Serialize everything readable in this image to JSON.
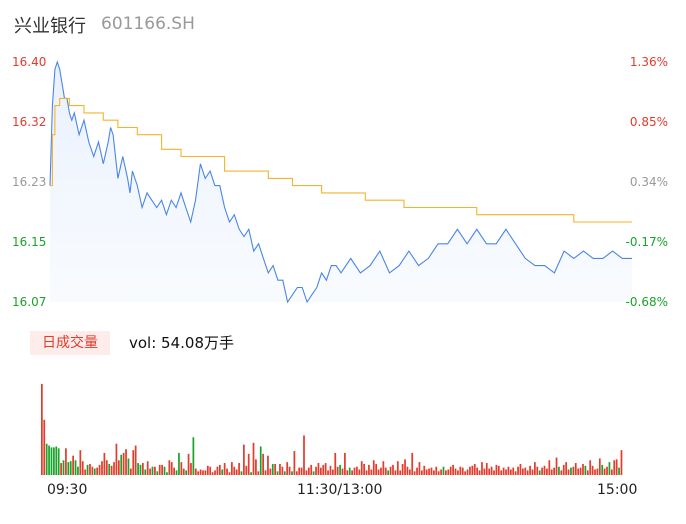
{
  "header": {
    "stock_name": "兴业银行",
    "stock_code": "601166.SH"
  },
  "colors": {
    "up": "#e13c2c",
    "down": "#1aa32a",
    "neutral": "#999999",
    "price_line": "#4a85e8",
    "avg_line": "#f5b32d"
  },
  "volume": {
    "period_badge": "日成交量",
    "label": "vol: 54.08万手"
  },
  "chart_data": {
    "type": "line",
    "ylim": [
      16.07,
      16.4
    ],
    "prev_close": 16.18,
    "y_ticks_left": [
      {
        "value": 16.4,
        "label": "16.40",
        "color": "up"
      },
      {
        "value": 16.32,
        "label": "16.32",
        "color": "up"
      },
      {
        "value": 16.23,
        "label": "16.23",
        "color": "neutral"
      },
      {
        "value": 16.15,
        "label": "16.15",
        "color": "down"
      },
      {
        "value": 16.07,
        "label": "16.07",
        "color": "down"
      }
    ],
    "y_ticks_right": [
      "1.36%",
      "0.85%",
      "0.34%",
      "-0.17%",
      "-0.68%"
    ],
    "x_ticks": [
      "09:30",
      "11:30/13:00",
      "15:00"
    ],
    "series": [
      {
        "x": [
          0,
          1,
          2,
          3,
          4,
          5,
          6,
          7,
          8,
          9,
          10,
          12,
          14,
          16,
          18,
          20,
          22,
          24,
          25,
          26,
          28,
          30,
          32,
          33,
          34,
          36,
          38,
          40,
          42,
          44,
          46,
          48,
          50,
          52,
          54,
          56,
          58,
          60,
          62,
          64,
          66,
          68,
          70,
          72,
          74,
          76,
          78,
          80,
          82,
          84,
          86,
          88,
          90,
          92,
          94,
          96,
          98,
          100,
          102,
          104,
          106,
          108,
          110,
          112,
          114,
          116,
          118,
          120,
          124,
          128,
          132,
          136,
          140,
          144,
          148,
          152,
          156,
          160,
          164,
          168,
          172,
          176,
          180,
          184,
          188,
          192,
          196,
          200,
          204,
          208,
          212,
          216,
          220,
          224,
          228,
          232,
          236,
          240
        ],
        "values": [
          16.23,
          16.34,
          16.39,
          16.4,
          16.39,
          16.37,
          16.35,
          16.35,
          16.33,
          16.32,
          16.33,
          16.3,
          16.32,
          16.29,
          16.27,
          16.29,
          16.26,
          16.29,
          16.31,
          16.3,
          16.24,
          16.27,
          16.24,
          16.22,
          16.25,
          16.23,
          16.2,
          16.22,
          16.21,
          16.2,
          16.21,
          16.19,
          16.21,
          16.2,
          16.22,
          16.2,
          16.18,
          16.21,
          16.26,
          16.24,
          16.25,
          16.23,
          16.23,
          16.2,
          16.18,
          16.19,
          16.17,
          16.16,
          16.17,
          16.14,
          16.15,
          16.13,
          16.11,
          16.12,
          16.1,
          16.1,
          16.07,
          16.08,
          16.09,
          16.09,
          16.07,
          16.08,
          16.09,
          16.11,
          16.1,
          16.12,
          16.12,
          16.11,
          16.13,
          16.11,
          16.12,
          16.14,
          16.11,
          16.12,
          16.14,
          16.12,
          16.13,
          16.15,
          16.15,
          16.17,
          16.15,
          16.17,
          16.15,
          16.15,
          16.17,
          16.15,
          16.13,
          16.12,
          16.12,
          16.11,
          16.14,
          16.13,
          16.14,
          16.13,
          16.13,
          16.14,
          16.13,
          16.13
        ]
      },
      {
        "x": [
          0,
          1,
          2,
          4,
          8,
          14,
          22,
          28,
          36,
          46,
          54,
          72,
          90,
          100,
          112,
          130,
          146,
          176,
          200,
          216,
          230,
          240
        ],
        "values": [
          16.23,
          16.3,
          16.34,
          16.35,
          16.34,
          16.33,
          16.32,
          16.31,
          16.3,
          16.28,
          16.27,
          16.25,
          16.24,
          16.23,
          16.22,
          16.21,
          16.2,
          16.19,
          16.19,
          16.18,
          16.18,
          16.18
        ]
      }
    ],
    "volume_values": [
      9.9,
      6.0,
      3.4,
      3.2,
      3.0,
      3.0,
      3.1,
      2.9,
      1.3,
      1.6,
      2.9,
      1.4,
      1.5,
      2.1,
      1.6,
      0.9,
      2.7,
      1.5,
      0.6,
      1.1,
      1.2,
      0.9,
      0.7,
      0.8,
      1.1,
      1.5,
      2.4,
      1.6,
      1.2,
      1.0,
      1.4,
      3.4,
      1.6,
      2.2,
      2.4,
      2.8,
      1.8,
      0.7,
      2.7,
      3.2,
      1.3,
      1.1,
      1.3,
      0.6,
      1.5,
      0.7,
      0.9,
      0.9,
      0.4,
      1.1,
      1.1,
      0.9,
      0.3,
      1.6,
      1.4,
      0.8,
      0.5,
      2.4,
      1.4,
      0.7,
      0.5,
      2.3,
      1.3,
      4.1,
      0.7,
      0.4,
      0.6,
      0.5,
      0.5,
      1.0,
      0.9,
      0.3,
      0.5,
      0.9,
      1.1,
      0.6,
      1.3,
      0.7,
      0.3,
      1.4,
      0.9,
      0.6,
      1.3,
      0.4,
      3.3,
      1.0,
      2.3,
      0.3,
      3.5,
      1.7,
      0.4,
      3.1,
      2.3,
      0.5,
      2.1,
      0.7,
      1.2,
      1.2,
      0.4,
      1.2,
      0.9,
      0.4,
      1.4,
      0.9,
      0.4,
      2.6,
      0.4,
      0.8,
      0.8,
      4.3,
      0.5,
      0.8,
      1.1,
      0.4,
      0.9,
      1.3,
      0.8,
      1.1,
      1.3,
      0.5,
      1.0,
      0.6,
      2.4,
      0.9,
      1.1,
      0.7,
      2.4,
      0.5,
      0.8,
      0.5,
      0.8,
      0.9,
      0.6,
      1.5,
      1.2,
      0.5,
      1.1,
      0.6,
      1.6,
      1.2,
      0.6,
      0.8,
      1.5,
      0.8,
      0.5,
      0.9,
      1.1,
      0.5,
      1.5,
      0.5,
      1.2,
      1.7,
      0.9,
      0.6,
      2.4,
      0.4,
      0.8,
      1.4,
      0.5,
      1.0,
      0.6,
      0.7,
      0.8,
      0.5,
      0.9,
      0.4,
      0.6,
      0.9,
      0.5,
      0.6,
      0.9,
      1.1,
      0.7,
      0.5,
      0.9,
      0.8,
      0.4,
      0.6,
      0.9,
      1.0,
      1.2,
      0.8,
      0.5,
      1.4,
      0.7,
      1.3,
      0.7,
      0.9,
      0.5,
      1.1,
      1.0,
      0.5,
      0.8,
      0.6,
      0.9,
      0.6,
      0.8,
      0.4,
      0.9,
      1.2,
      0.7,
      0.8,
      0.5,
      1.0,
      0.6,
      1.4,
      0.9,
      0.5,
      0.8,
      1.0,
      0.7,
      1.6,
      0.6,
      0.8,
      1.9,
      0.9,
      0.5,
      1.1,
      1.4,
      0.6,
      0.8,
      0.9,
      1.3,
      0.7,
      0.8,
      1.2,
      1.0,
      0.5,
      1.6,
      1.0,
      0.6,
      0.7,
      1.8,
      1.1,
      0.7,
      0.9,
      1.4,
      0.6,
      1.6,
      1.7,
      0.8,
      2.7
    ],
    "volume_colors": "RRGGGGGGRGRGGRGGRRRGRRGRRRRRGRRRRGRRGRRRGGRGRRGRGRRGGRRRGGRRGRRGRRRRRRRRRRRGRRRRRRRGRRRGRRRGRRRRGRGRRGRRGRRRRRRRRGRRRRRRRRRRGRRRGRRRRRRRRRRRRRRRGRRRRRRRRRRRRRRRRRRRRRRGRRRRRRRRRRRRRRRRRRRRRRRRRRRRRRRRRRRRRRRGRRRRRRRGRRRRGRRRRRGRRRRRRGRRGRRRGRR"
  }
}
